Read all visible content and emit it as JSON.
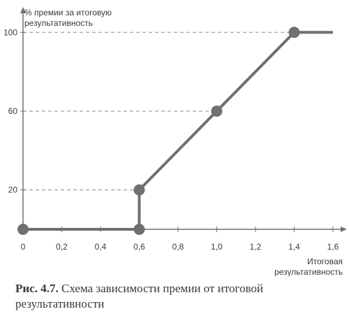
{
  "chart_data": {
    "type": "line",
    "ylabel_lines": [
      "% премии за итоговую",
      "результативность"
    ],
    "xlabel_lines": [
      "Итоговая",
      "результативность"
    ],
    "x_ticks": [
      {
        "value": 0,
        "label": "0"
      },
      {
        "value": 0.2,
        "label": "0,2"
      },
      {
        "value": 0.4,
        "label": "0,4"
      },
      {
        "value": 0.6,
        "label": "0,6"
      },
      {
        "value": 0.8,
        "label": "0,8"
      },
      {
        "value": 1.0,
        "label": "1,0"
      },
      {
        "value": 1.2,
        "label": "1,2"
      },
      {
        "value": 1.4,
        "label": "1,4"
      },
      {
        "value": 1.6,
        "label": "1,6"
      }
    ],
    "y_ticks": [
      {
        "value": 20,
        "label": "20"
      },
      {
        "value": 60,
        "label": "60"
      },
      {
        "value": 100,
        "label": "100"
      }
    ],
    "xlim": [
      0,
      1.7
    ],
    "ylim": [
      0,
      105
    ],
    "grid": "dashed horizontal reference lines at marked y values",
    "series": [
      {
        "x": [
          0,
          0.6,
          0.6,
          1.0,
          1.4,
          1.6
        ],
        "y": [
          0,
          0,
          20,
          60,
          100,
          100
        ]
      }
    ],
    "markers": [
      {
        "x": 0,
        "y": 0
      },
      {
        "x": 0.6,
        "y": 0
      },
      {
        "x": 0.6,
        "y": 20
      },
      {
        "x": 1.0,
        "y": 60
      },
      {
        "x": 1.4,
        "y": 100
      }
    ],
    "colors": {
      "line": "#707070",
      "marker": "#707070",
      "axis": "#707070",
      "dashes": "#8a8a8a",
      "text": "#3a3a3a"
    }
  },
  "caption": {
    "label": "Рис. 4.7.",
    "text": " Схема зависимости премии от итоговой результативности"
  }
}
